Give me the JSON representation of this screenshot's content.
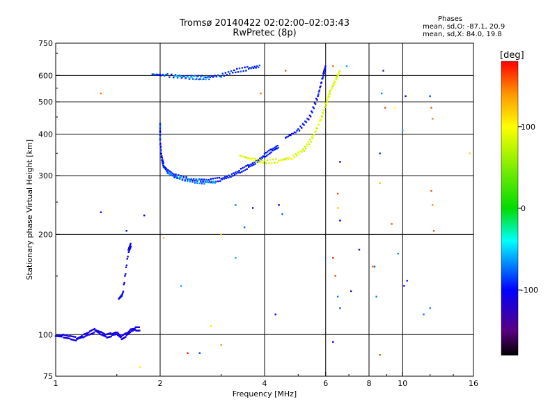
{
  "title": "Tromsø 20140422 02:02:00–02:03:43",
  "subtitle": "RwPretec (8p)",
  "phases": {
    "heading": "Phases",
    "o_line": "mean, sd,O: -87.1, 20.9",
    "x_line": "mean, sd,X:  84.0, 19.8"
  },
  "colorbar": {
    "unit": "[deg]",
    "ticks": [
      {
        "value": 100,
        "label": "100"
      },
      {
        "value": 0,
        "label": "0"
      },
      {
        "value": -100,
        "label": "-100"
      }
    ],
    "range": [
      -180,
      180
    ]
  },
  "chart_data": {
    "type": "scatter",
    "xlabel": "Frequency [MHz]",
    "ylabel": "Stationary phase Virtual Height [km]",
    "xscale": "log",
    "yscale": "log",
    "xlim": [
      1,
      16
    ],
    "ylim": [
      75,
      750
    ],
    "x_ticks": [
      {
        "v": 1,
        "label": "1"
      },
      {
        "v": 2,
        "label": "2"
      },
      {
        "v": 4,
        "label": "4"
      },
      {
        "v": 6,
        "label": "6"
      },
      {
        "v": 8,
        "label": "8"
      },
      {
        "v": 10,
        "label": "10"
      },
      {
        "v": 16,
        "label": "16"
      }
    ],
    "y_ticks": [
      {
        "v": 75,
        "label": "75"
      },
      {
        "v": 100,
        "label": "100"
      },
      {
        "v": 200,
        "label": "200"
      },
      {
        "v": 300,
        "label": "300"
      },
      {
        "v": 400,
        "label": "400"
      },
      {
        "v": 500,
        "label": "500"
      },
      {
        "v": 600,
        "label": "600"
      },
      {
        "v": 750,
        "label": "750"
      }
    ],
    "x_grid": [
      2,
      4,
      6,
      8,
      10
    ],
    "y_grid": [
      100,
      200,
      300,
      400,
      500,
      600
    ],
    "traces": [
      {
        "name": "low",
        "phase": -110,
        "points": [
          [
            1.0,
            99
          ],
          [
            1.05,
            99
          ],
          [
            1.1,
            98
          ],
          [
            1.15,
            97
          ],
          [
            1.2,
            99
          ],
          [
            1.25,
            101
          ],
          [
            1.3,
            103
          ],
          [
            1.35,
            101
          ],
          [
            1.4,
            99
          ],
          [
            1.45,
            100
          ],
          [
            1.5,
            101
          ],
          [
            1.55,
            98
          ],
          [
            1.6,
            100
          ],
          [
            1.65,
            103
          ],
          [
            1.7,
            104
          ],
          [
            1.75,
            104
          ]
        ]
      },
      {
        "name": "low-rise",
        "phase": -105,
        "points": [
          [
            1.52,
            128
          ],
          [
            1.56,
            132
          ],
          [
            1.62,
            178
          ],
          [
            1.65,
            187
          ]
        ]
      },
      {
        "name": "F-lower",
        "phase": -95,
        "points": [
          [
            2.0,
            430
          ],
          [
            2.0,
            380
          ],
          [
            2.02,
            340
          ],
          [
            2.05,
            320
          ],
          [
            2.1,
            310
          ],
          [
            2.2,
            300
          ],
          [
            2.4,
            293
          ],
          [
            2.6,
            290
          ],
          [
            2.8,
            290
          ],
          [
            3.0,
            293
          ],
          [
            3.2,
            300
          ],
          [
            3.4,
            310
          ],
          [
            3.6,
            320
          ],
          [
            3.8,
            330
          ],
          [
            4.0,
            345
          ],
          [
            4.2,
            358
          ],
          [
            4.4,
            368
          ]
        ]
      },
      {
        "name": "F-lower-cyan",
        "phase": -70,
        "points": [
          [
            2.1,
            305
          ],
          [
            2.3,
            294
          ],
          [
            2.5,
            289
          ],
          [
            2.7,
            287
          ],
          [
            2.9,
            287
          ]
        ]
      },
      {
        "name": "F-upper",
        "phase": -90,
        "points": [
          [
            1.9,
            605
          ],
          [
            2.1,
            600
          ],
          [
            2.4,
            592
          ],
          [
            2.7,
            592
          ],
          [
            3.0,
            600
          ],
          [
            3.3,
            620
          ],
          [
            3.6,
            630
          ],
          [
            3.9,
            640
          ]
        ]
      },
      {
        "name": "F-upper-cyan",
        "phase": -65,
        "points": [
          [
            2.2,
            598
          ],
          [
            2.5,
            590
          ],
          [
            2.8,
            588
          ]
        ]
      },
      {
        "name": "X-trace",
        "phase": 85,
        "points": [
          [
            3.4,
            345
          ],
          [
            3.7,
            335
          ],
          [
            4.0,
            330
          ],
          [
            4.4,
            333
          ],
          [
            4.8,
            340
          ],
          [
            5.2,
            360
          ],
          [
            5.5,
            390
          ],
          [
            5.8,
            440
          ],
          [
            6.0,
            490
          ],
          [
            6.2,
            540
          ],
          [
            6.4,
            580
          ],
          [
            6.6,
            620
          ]
        ]
      },
      {
        "name": "O-rise",
        "phase": -100,
        "points": [
          [
            4.6,
            390
          ],
          [
            5.0,
            410
          ],
          [
            5.4,
            450
          ],
          [
            5.7,
            520
          ],
          [
            5.9,
            600
          ],
          [
            6.0,
            640
          ]
        ]
      }
    ],
    "scatter": [
      {
        "f": 1.35,
        "h": 530,
        "p": 150
      },
      {
        "f": 1.35,
        "h": 233,
        "p": -110
      },
      {
        "f": 1.6,
        "h": 205,
        "p": -100
      },
      {
        "f": 1.8,
        "h": 228,
        "p": -100
      },
      {
        "f": 1.75,
        "h": 80,
        "p": 110
      },
      {
        "f": 2.05,
        "h": 195,
        "p": 120
      },
      {
        "f": 2.3,
        "h": 140,
        "p": -60
      },
      {
        "f": 2.4,
        "h": 88,
        "p": 170
      },
      {
        "f": 2.6,
        "h": 88,
        "p": -80
      },
      {
        "f": 2.8,
        "h": 106,
        "p": 110
      },
      {
        "f": 3.0,
        "h": 93,
        "p": 140
      },
      {
        "f": 3.0,
        "h": 200,
        "p": 120
      },
      {
        "f": 3.3,
        "h": 245,
        "p": -70
      },
      {
        "f": 3.3,
        "h": 170,
        "p": -60
      },
      {
        "f": 3.5,
        "h": 210,
        "p": -75
      },
      {
        "f": 3.7,
        "h": 240,
        "p": -120
      },
      {
        "f": 3.9,
        "h": 530,
        "p": 150
      },
      {
        "f": 4.3,
        "h": 115,
        "p": -110
      },
      {
        "f": 4.4,
        "h": 245,
        "p": -110
      },
      {
        "f": 4.5,
        "h": 230,
        "p": -80
      },
      {
        "f": 4.6,
        "h": 620,
        "p": 160
      },
      {
        "f": 6.3,
        "h": 640,
        "p": 150
      },
      {
        "f": 6.6,
        "h": 330,
        "p": -100
      },
      {
        "f": 6.9,
        "h": 640,
        "p": -60
      },
      {
        "f": 6.5,
        "h": 265,
        "p": 160
      },
      {
        "f": 6.5,
        "h": 240,
        "p": 120
      },
      {
        "f": 6.6,
        "h": 220,
        "p": -100
      },
      {
        "f": 6.3,
        "h": 170,
        "p": 170
      },
      {
        "f": 6.4,
        "h": 150,
        "p": 160
      },
      {
        "f": 6.5,
        "h": 130,
        "p": -70
      },
      {
        "f": 6.3,
        "h": 95,
        "p": -110
      },
      {
        "f": 6.6,
        "h": 120,
        "p": -80
      },
      {
        "f": 7.1,
        "h": 135,
        "p": -130
      },
      {
        "f": 7.5,
        "h": 180,
        "p": -110
      },
      {
        "f": 8.2,
        "h": 160,
        "p": 150
      },
      {
        "f": 8.6,
        "h": 285,
        "p": 120
      },
      {
        "f": 8.8,
        "h": 620,
        "p": -120
      },
      {
        "f": 8.6,
        "h": 350,
        "p": -90
      },
      {
        "f": 8.9,
        "h": 480,
        "p": 160
      },
      {
        "f": 8.7,
        "h": 530,
        "p": -70
      },
      {
        "f": 8.6,
        "h": 87,
        "p": 160
      },
      {
        "f": 9.3,
        "h": 215,
        "p": 160
      },
      {
        "f": 9.5,
        "h": 480,
        "p": 100
      },
      {
        "f": 9.7,
        "h": 175,
        "p": -70
      },
      {
        "f": 10.0,
        "h": 410,
        "p": -60
      },
      {
        "f": 10.2,
        "h": 520,
        "p": -110
      },
      {
        "f": 10.1,
        "h": 140,
        "p": -110
      },
      {
        "f": 10.3,
        "h": 145,
        "p": -90
      },
      {
        "f": 11.5,
        "h": 115,
        "p": -70
      },
      {
        "f": 12.0,
        "h": 520,
        "p": -80
      },
      {
        "f": 12.1,
        "h": 480,
        "p": 160
      },
      {
        "f": 12.2,
        "h": 445,
        "p": 150
      },
      {
        "f": 12.1,
        "h": 270,
        "p": 160
      },
      {
        "f": 12.2,
        "h": 245,
        "p": 140
      },
      {
        "f": 12.3,
        "h": 205,
        "p": 160
      },
      {
        "f": 12.0,
        "h": 120,
        "p": -70
      },
      {
        "f": 15.6,
        "h": 350,
        "p": 120
      },
      {
        "f": 8.3,
        "h": 160,
        "p": -80
      },
      {
        "f": 8.4,
        "h": 130,
        "p": -70
      }
    ]
  }
}
